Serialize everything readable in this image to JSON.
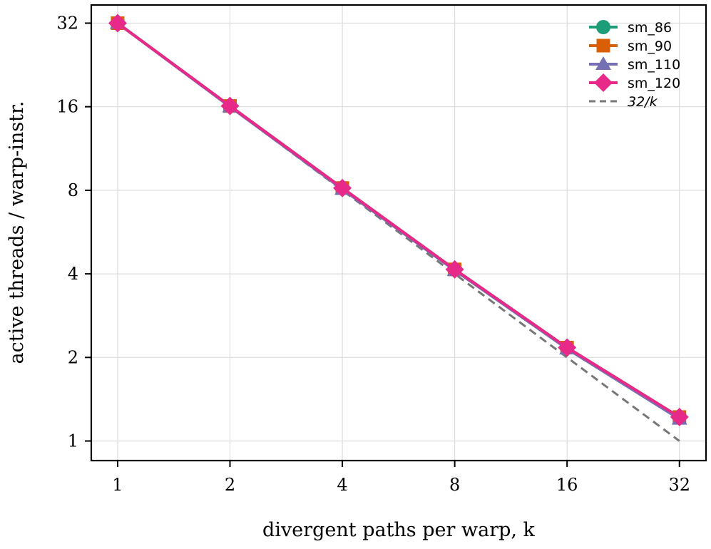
{
  "chart_data": {
    "type": "line",
    "xlabel": "divergent paths per warp, k",
    "ylabel": "active threads / warp-instr.",
    "xscale": "log2",
    "yscale": "log2",
    "xlim": [
      0.85,
      37.7
    ],
    "ylim": [
      0.85,
      37.2
    ],
    "grid": true,
    "legend_position": "top-right",
    "x_ticks": [
      1,
      2,
      4,
      8,
      16,
      32
    ],
    "x_tick_labels": [
      "1",
      "2",
      "4",
      "8",
      "16",
      "32"
    ],
    "y_ticks": [
      1,
      2,
      4,
      8,
      16,
      32
    ],
    "y_tick_labels": [
      "1",
      "2",
      "4",
      "8",
      "16",
      "32"
    ],
    "x": [
      1,
      2,
      4,
      8,
      16,
      32
    ],
    "series": [
      {
        "name": "sm_86",
        "marker": "circle",
        "color": "#1b9e77",
        "values": [
          32,
          16.1,
          8.15,
          4.15,
          2.17,
          1.22
        ]
      },
      {
        "name": "sm_90",
        "marker": "square",
        "color": "#d95f02",
        "values": [
          32,
          16.1,
          8.15,
          4.15,
          2.17,
          1.22
        ]
      },
      {
        "name": "sm_110",
        "marker": "triangle",
        "color": "#7570b3",
        "values": [
          32,
          16.0,
          8.08,
          4.12,
          2.15,
          1.2
        ]
      },
      {
        "name": "sm_120",
        "marker": "diamond",
        "color": "#e7298a",
        "values": [
          32,
          16.1,
          8.15,
          4.15,
          2.17,
          1.22
        ]
      }
    ],
    "reference_line": {
      "name": "32/k",
      "style": "dashed",
      "color": "#777777",
      "values": [
        32,
        16,
        8,
        4,
        2,
        1
      ]
    }
  }
}
